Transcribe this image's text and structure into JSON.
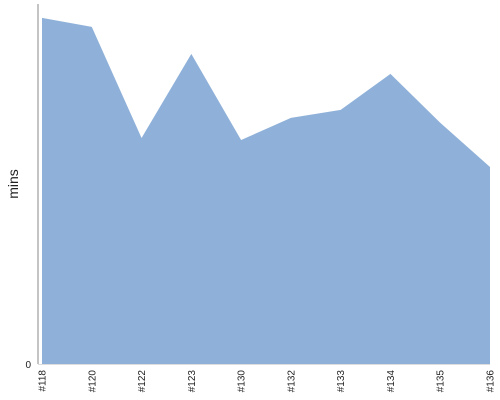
{
  "chart_data": {
    "type": "area",
    "ylabel": "mins",
    "xlabel": "",
    "title": "",
    "categories": [
      "#118",
      "#120",
      "#122",
      "#123",
      "#130",
      "#132",
      "#133",
      "#134",
      "#135",
      "#136"
    ],
    "series": [
      {
        "values": [
          100,
          97.4,
          65.3,
          89.6,
          64.7,
          71.1,
          73.4,
          83.8,
          69.7,
          56.9
        ],
        "color": "#8fb1d9"
      }
    ],
    "yticks": [
      "0"
    ],
    "ylim": [
      0,
      104
    ],
    "grid": false,
    "legend": "none",
    "colors": {
      "area": "#8fb1d9",
      "axis": "#888888",
      "text": "#222222"
    }
  }
}
